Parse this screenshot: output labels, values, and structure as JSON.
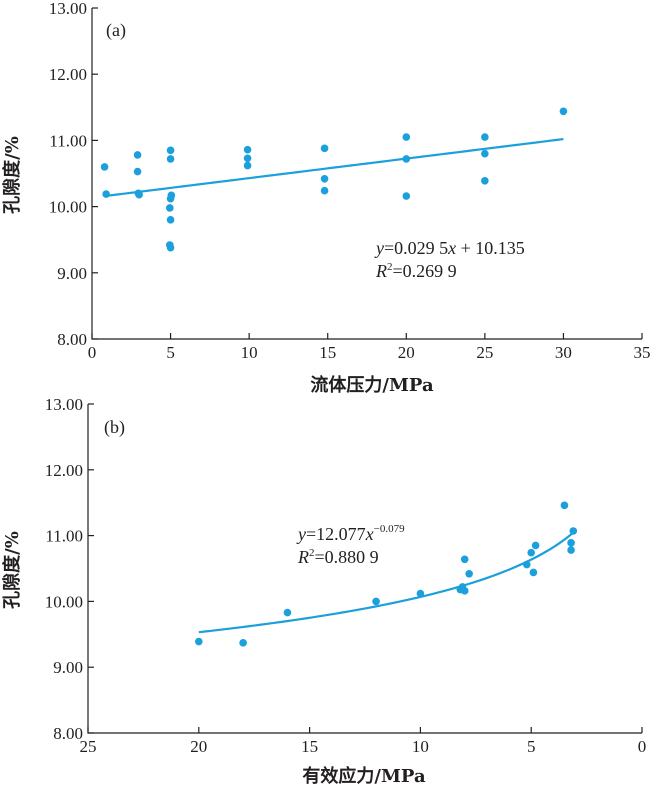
{
  "chart_data": [
    {
      "type": "scatter",
      "panel_label": "(a)",
      "xlabel": "流体压力/MPa",
      "ylabel": "孔隙度/%",
      "xlim": [
        0,
        35
      ],
      "ylim": [
        8,
        13
      ],
      "x_ticks": [
        "0",
        "5",
        "10",
        "15",
        "20",
        "25",
        "30",
        "35"
      ],
      "y_ticks": [
        "8.00",
        "9.00",
        "10.00",
        "11.00",
        "12.00",
        "13.00"
      ],
      "series": [
        {
          "points": [
            {
              "x": 0.8,
              "y": 10.6
            },
            {
              "x": 0.9,
              "y": 10.19
            },
            {
              "x": 2.9,
              "y": 10.78
            },
            {
              "x": 2.9,
              "y": 10.53
            },
            {
              "x": 2.95,
              "y": 10.2
            },
            {
              "x": 3.0,
              "y": 10.18
            },
            {
              "x": 5.0,
              "y": 10.85
            },
            {
              "x": 5.0,
              "y": 10.72
            },
            {
              "x": 5.05,
              "y": 10.17
            },
            {
              "x": 5.0,
              "y": 10.12
            },
            {
              "x": 4.95,
              "y": 9.98
            },
            {
              "x": 5.0,
              "y": 9.8
            },
            {
              "x": 4.95,
              "y": 9.42
            },
            {
              "x": 5.0,
              "y": 9.38
            },
            {
              "x": 9.9,
              "y": 10.86
            },
            {
              "x": 9.9,
              "y": 10.73
            },
            {
              "x": 9.9,
              "y": 10.62
            },
            {
              "x": 14.8,
              "y": 10.88
            },
            {
              "x": 14.8,
              "y": 10.42
            },
            {
              "x": 14.8,
              "y": 10.24
            },
            {
              "x": 20.0,
              "y": 11.05
            },
            {
              "x": 20.0,
              "y": 10.72
            },
            {
              "x": 20.0,
              "y": 10.16
            },
            {
              "x": 25.0,
              "y": 11.05
            },
            {
              "x": 25.0,
              "y": 10.8
            },
            {
              "x": 25.0,
              "y": 10.39
            },
            {
              "x": 30.0,
              "y": 11.44
            }
          ]
        }
      ],
      "trendline": {
        "kind": "linear",
        "slope": 0.0295,
        "intercept": 10.135,
        "x_range": [
          1,
          30
        ]
      },
      "equation": {
        "prefix": "y",
        "body": "=0.029 5",
        "x_sym": "x",
        "tail": " + 10.135"
      },
      "r2": {
        "sym": "R",
        "sup": "2",
        "value": "=0.269 9"
      }
    },
    {
      "type": "scatter",
      "panel_label": "(b)",
      "xlabel": "有效应力/MPa",
      "ylabel": "孔隙度/%",
      "xlim": [
        25,
        0
      ],
      "ylim": [
        8,
        13
      ],
      "x_ticks": [
        "25",
        "20",
        "15",
        "10",
        "5",
        "0"
      ],
      "y_ticks": [
        "8.00",
        "9.00",
        "10.00",
        "11.00",
        "12.00",
        "13.00"
      ],
      "series": [
        {
          "points": [
            {
              "x": 20.0,
              "y": 9.39
            },
            {
              "x": 18.0,
              "y": 9.37
            },
            {
              "x": 16.0,
              "y": 9.83
            },
            {
              "x": 12.0,
              "y": 10.0
            },
            {
              "x": 10.0,
              "y": 10.12
            },
            {
              "x": 8.0,
              "y": 10.64
            },
            {
              "x": 7.8,
              "y": 10.42
            },
            {
              "x": 8.1,
              "y": 10.22
            },
            {
              "x": 8.2,
              "y": 10.18
            },
            {
              "x": 8.0,
              "y": 10.16
            },
            {
              "x": 5.0,
              "y": 10.74
            },
            {
              "x": 4.9,
              "y": 10.44
            },
            {
              "x": 5.2,
              "y": 10.56
            },
            {
              "x": 4.8,
              "y": 10.85
            },
            {
              "x": 3.5,
              "y": 11.46
            },
            {
              "x": 3.1,
              "y": 11.07
            },
            {
              "x": 3.2,
              "y": 10.89
            },
            {
              "x": 3.2,
              "y": 10.78
            }
          ]
        }
      ],
      "trendline": {
        "kind": "power",
        "coef": 12.077,
        "exp": -0.079,
        "x_range": [
          20,
          3.1
        ]
      },
      "equation": {
        "prefix": "y",
        "body": "=12.077",
        "x_sym": "x",
        "sup": "−0.079"
      },
      "r2": {
        "sym": "R",
        "sup": "2",
        "value": "=0.880 9"
      }
    }
  ]
}
